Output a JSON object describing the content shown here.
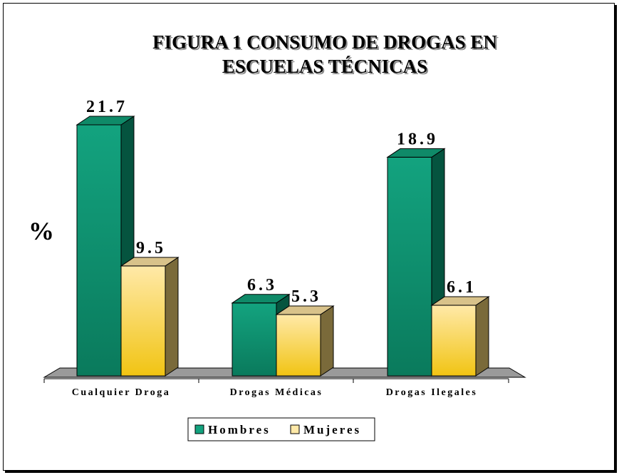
{
  "colors": {
    "hombres_face": "#13a37f",
    "hombres_face_dark": "#0a7a5c",
    "hombres_side": "#05543f",
    "hombres_top": "#0f8a68",
    "mujeres_face": "#ffe9a8",
    "mujeres_face_dark": "#f1c413",
    "mujeres_side": "#7a6a3a",
    "mujeres_top": "#d8c28a",
    "floor": "#9a9a9a"
  },
  "chart_data": {
    "type": "bar",
    "title_lines": [
      "FIGURA 1 CONSUMO DE DROGAS EN",
      "ESCUELAS TÉCNICAS"
    ],
    "xlabel": "",
    "ylabel": "%",
    "categories": [
      "Cualquier Droga",
      "Drogas Médicas",
      "Drogas Ilegales"
    ],
    "series": [
      {
        "name": "Hombres",
        "values": [
          21.7,
          6.3,
          18.9
        ],
        "labels": [
          "21.7",
          "6.3",
          "18.9"
        ]
      },
      {
        "name": "Mujeres",
        "values": [
          9.5,
          5.3,
          6.1
        ],
        "labels": [
          "9.5",
          "5.3",
          "6.1"
        ]
      }
    ],
    "ylim": [
      0,
      21.7
    ],
    "grid": false,
    "legend": "bottom",
    "style": "3d"
  }
}
